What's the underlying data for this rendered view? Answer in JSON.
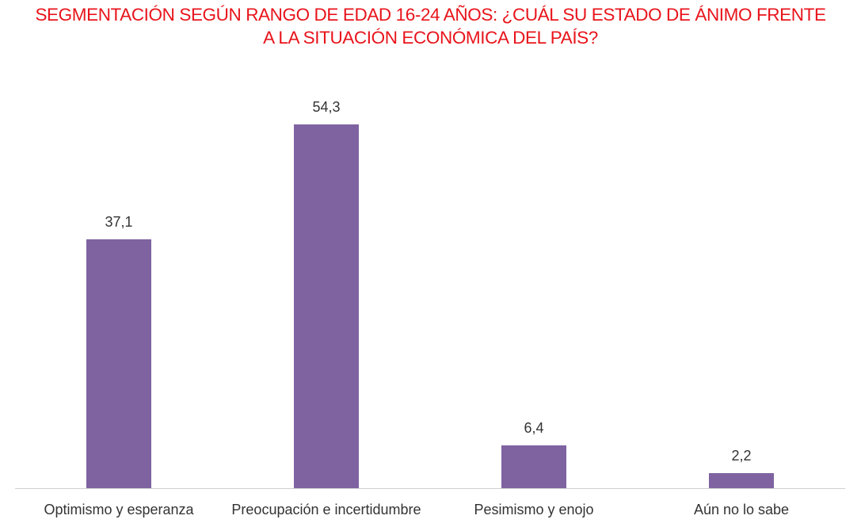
{
  "chart_data": {
    "type": "bar",
    "title": "SEGMENTACIÓN SEGÚN RANGO DE EDAD 16-24 AÑOS: ¿CUÁL SU ESTADO DE ÁNIMO FRENTE A LA SITUACIÓN ECONÓMICA DEL PAÍS?",
    "title_lines": [
      "SEGMENTACIÓN SEGÚN RANGO DE EDAD 16-24 AÑOS: ¿CUÁL SU ESTADO DE ÁNIMO FRENTE",
      "A LA SITUACIÓN ECONÓMICA DEL PAÍS?"
    ],
    "categories": [
      "Optimismo y esperanza",
      "Preocupación e incertidumbre",
      "Pesimismo y enojo",
      "Aún no lo sabe"
    ],
    "values": [
      37.1,
      54.3,
      6.4,
      2.2
    ],
    "value_labels": [
      "37,1",
      "54,3",
      "6,4",
      "2,2"
    ],
    "xlabel": "",
    "ylabel": "",
    "ylim": [
      0,
      60
    ],
    "grid": false,
    "legend": null,
    "colors": {
      "bar": "#7f63a1",
      "title": "#e8141b",
      "text": "#333333",
      "axis": "#d0d0d0"
    }
  }
}
